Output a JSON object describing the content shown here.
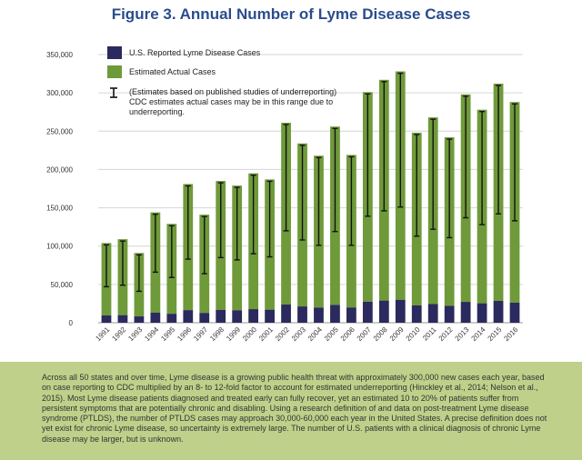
{
  "title": "Figure 3. Annual Number of Lyme Disease Cases",
  "chart_data": {
    "type": "bar",
    "stacked": true,
    "categories": [
      "1991",
      "1992",
      "1993",
      "1994",
      "1995",
      "1996",
      "1997",
      "1998",
      "1999",
      "2000",
      "2001",
      "2002",
      "2003",
      "2004",
      "2005",
      "2006",
      "2007",
      "2008",
      "2009",
      "2010",
      "2011",
      "2012",
      "2013",
      "2014",
      "2015",
      "2016"
    ],
    "series": [
      {
        "name": "U.S. Reported Lyme Disease Cases",
        "color": "#2a2a5e",
        "values": [
          9465,
          9895,
          8257,
          13043,
          11700,
          16455,
          12801,
          16801,
          16273,
          17730,
          17029,
          23763,
          21273,
          19804,
          23305,
          19931,
          27444,
          28921,
          29959,
          22561,
          24364,
          22014,
          27203,
          25359,
          28453,
          26203
        ]
      },
      {
        "name": "Estimated Actual Cases",
        "color": "#6f9a3a",
        "totals": [
          104000,
          109000,
          91000,
          144000,
          129000,
          181000,
          141000,
          185000,
          179000,
          195000,
          187000,
          261000,
          234000,
          218000,
          256000,
          219000,
          301000,
          317000,
          328000,
          248000,
          268000,
          242000,
          298000,
          278000,
          312000,
          288000
        ]
      }
    ],
    "error_range": {
      "low": [
        47000,
        49000,
        41000,
        66000,
        59000,
        83000,
        64000,
        85000,
        82000,
        90000,
        86000,
        120000,
        108000,
        101000,
        119000,
        101000,
        139000,
        146000,
        151000,
        113000,
        122000,
        111000,
        137000,
        128000,
        142000,
        133000
      ],
      "high": [
        104000,
        109000,
        91000,
        144000,
        129000,
        181000,
        141000,
        185000,
        179000,
        195000,
        187000,
        261000,
        234000,
        218000,
        256000,
        219000,
        301000,
        317000,
        328000,
        248000,
        268000,
        242000,
        298000,
        278000,
        312000,
        288000
      ]
    },
    "ylim": [
      0,
      350000
    ],
    "yticks": [
      "0",
      "50,000",
      "100,000",
      "150,000",
      "200,000",
      "250,000",
      "300,000",
      "350,000"
    ],
    "grid": true,
    "legend": {
      "position": "top-left",
      "items": [
        "U.S. Reported Lyme Disease Cases",
        "Estimated Actual Cases",
        "(Estimates based on published studies of underreporting) CDC estimates actual cases may be in this range due to underreporting."
      ],
      "error_line1": "(Estimates based on published studies of underreporting)",
      "error_line2": "CDC estimates actual cases may be in this range due to",
      "error_line3": "underreporting."
    }
  },
  "footer_text": "Across all 50 states and over time, Lyme disease is a growing public health threat with approximately 300,000 new cases each year, based on case reporting to CDC multiplied by an 8- to 12-fold factor to account for estimated underreporting (Hinckley et al., 2014; Nelson et al., 2015). Most Lyme disease patients diagnosed and treated early can fully recover, yet an estimated 10 to 20% of patients suffer from persistent symptoms that are potentially chronic and disabling. Using a research definition of and data on post-treatment Lyme disease syndrome (PTLDS), the number of PTLDS cases may approach 30,000-60,000 each year in the United States. A precise definition does not yet exist for chronic Lyme disease, so uncertainty is extremely large. The number of U.S. patients with a clinical diagnosis of chronic Lyme disease may be larger, but is unknown."
}
